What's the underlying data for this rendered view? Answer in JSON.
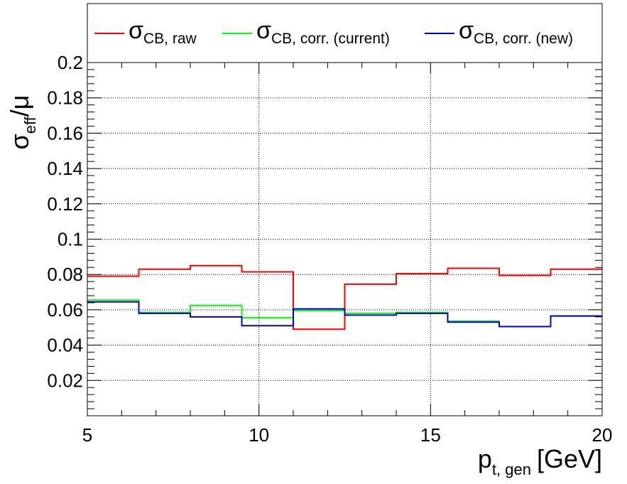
{
  "chart_data": {
    "type": "line",
    "step": true,
    "xlabel": "p",
    "xlabel_sub": "t, gen",
    "xlabel_unit": "[GeV]",
    "ylabel": "σ",
    "ylabel_sub": "eff",
    "ylabel_tail": "/μ",
    "xlim": [
      5,
      20
    ],
    "ylim": [
      0,
      0.2
    ],
    "x_ticks": [
      "5",
      "10",
      "15",
      "20"
    ],
    "y_ticks": [
      "0.02",
      "0.04",
      "0.06",
      "0.08",
      "0.1",
      "0.12",
      "0.14",
      "0.16",
      "0.18",
      "0.2"
    ],
    "grid": true,
    "legend_position": "top",
    "bin_edges": [
      5,
      6.5,
      8,
      9.5,
      11,
      12.5,
      14,
      15.5,
      17,
      18.5,
      20
    ],
    "series": [
      {
        "name": "σ",
        "name_sub": "CB, raw",
        "color": "#ff0000",
        "values": [
          0.079,
          0.083,
          0.085,
          0.0815,
          0.049,
          0.0745,
          0.0805,
          0.0835,
          0.0795,
          0.083
        ]
      },
      {
        "name": "σ",
        "name_sub": "CB, corr. (current)",
        "color": "#00ff00",
        "values": [
          0.0655,
          0.0585,
          0.0625,
          0.0555,
          0.0595,
          0.058,
          0.0585,
          0.0535,
          0.0505,
          0.0565
        ]
      },
      {
        "name": "σ",
        "name_sub": "CB, corr. (new)",
        "color": "#0000cc",
        "values": [
          0.0645,
          0.058,
          0.056,
          0.051,
          0.0605,
          0.057,
          0.058,
          0.053,
          0.0505,
          0.0565
        ]
      }
    ]
  }
}
